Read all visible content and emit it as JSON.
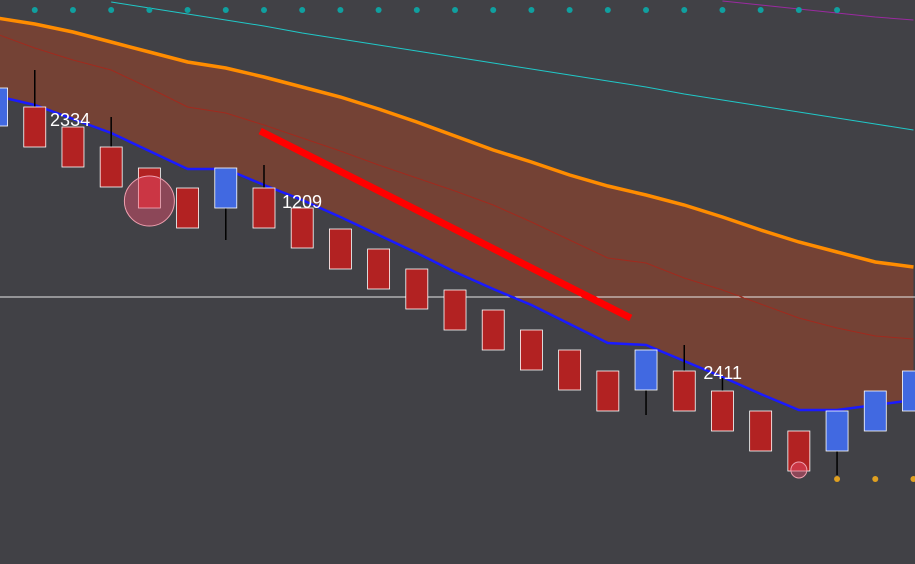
{
  "chart_data": {
    "type": "candlestick",
    "x": [
      0,
      1,
      2,
      3,
      4,
      5,
      6,
      7,
      8,
      9,
      10,
      11,
      12,
      13,
      14,
      15,
      16,
      17,
      18,
      19,
      20,
      21,
      22,
      23,
      24
    ],
    "open": [
      438,
      457,
      437,
      417,
      396,
      376,
      356,
      376,
      356,
      335,
      315,
      295,
      274,
      254,
      234,
      214,
      193,
      174,
      193,
      173,
      153,
      133,
      113,
      133,
      153
    ],
    "high": [
      476,
      494,
      437,
      447,
      396,
      376,
      396,
      399,
      356,
      335,
      315,
      295,
      274,
      254,
      234,
      214,
      193,
      214,
      219,
      186,
      153,
      133,
      153,
      173,
      193
    ],
    "low": [
      438,
      417,
      397,
      377,
      356,
      336,
      324,
      336,
      316,
      295,
      275,
      255,
      234,
      214,
      194,
      174,
      153,
      149,
      153,
      133,
      113,
      93,
      89,
      133,
      153
    ],
    "close": [
      476,
      417,
      397,
      377,
      356,
      336,
      396,
      336,
      316,
      295,
      275,
      255,
      234,
      214,
      194,
      174,
      153,
      214,
      153,
      133,
      113,
      93,
      153,
      173,
      193
    ],
    "up_color": "#4169e1",
    "down_color": "#b22222",
    "xlim": [
      0.09,
      24.04
    ],
    "ylim": [
      0,
      564
    ],
    "band_color": "#7a4333",
    "series": [
      {
        "color": "#1a1aff",
        "values": [
          468,
          459,
          445,
          431,
          413,
          395,
          395,
          379,
          364,
          347,
          329,
          311,
          292,
          275,
          259,
          240,
          221,
          219,
          203,
          187,
          170,
          154,
          154,
          159,
          164
        ]
      },
      {
        "color": "#ff8c00",
        "values": [
          546,
          540,
          532,
          522,
          512,
          502,
          496,
          487,
          477,
          467,
          455,
          442,
          428,
          414,
          402,
          389,
          378,
          369,
          359,
          347,
          334,
          322,
          312,
          302,
          297
        ]
      },
      {
        "color": "#a02a1e",
        "values": [
          530,
          516,
          504,
          494,
          476,
          457,
          451,
          439,
          426,
          413,
          399,
          386,
          373,
          359,
          342,
          324,
          306,
          301,
          286,
          274,
          260,
          246,
          236,
          228,
          225
        ]
      },
      {
        "color": "#20c8c8",
        "values": [
          null,
          null,
          null,
          562,
          556,
          550,
          544,
          538,
          531,
          525,
          519,
          513,
          507,
          501,
          495,
          489,
          483,
          477,
          470,
          464,
          458,
          452,
          446,
          440,
          434
        ]
      },
      {
        "color": "#9a2aa0",
        "values": [
          null,
          null,
          null,
          null,
          null,
          null,
          null,
          null,
          null,
          null,
          null,
          null,
          null,
          null,
          null,
          null,
          null,
          null,
          null,
          563,
          559,
          555,
          551,
          547,
          544
        ]
      }
    ],
    "hline": {
      "value": 267,
      "color": "#e8e8e8"
    },
    "trendline": {
      "x": [
        6.9,
        16.6
      ],
      "values": [
        433,
        246
      ],
      "color": "#ff0000"
    },
    "dots": [
      {
        "color": "#10a0a0",
        "x": [
          1,
          2,
          3,
          4,
          5,
          6,
          7,
          8,
          9,
          10,
          11,
          12,
          13,
          14,
          15,
          16,
          17,
          18,
          19,
          20,
          21,
          22
        ],
        "values": [
          554,
          554,
          554,
          554,
          554,
          554,
          554,
          554,
          554,
          554,
          554,
          554,
          554,
          554,
          554,
          554,
          554,
          554,
          554,
          554,
          554,
          554
        ]
      },
      {
        "color": "#e0a020",
        "x": [
          22,
          23,
          24
        ],
        "values": [
          85,
          85,
          85
        ]
      }
    ],
    "markers": {
      "color": "#e8506e",
      "x": [
        4,
        21
      ],
      "values": [
        363,
        94
      ],
      "sizes": [
        25,
        8
      ]
    },
    "annotations": [
      {
        "text": "2334",
        "x": 1.4,
        "y": 443
      },
      {
        "text": "1209",
        "x": 7.47,
        "y": 361
      },
      {
        "text": "2411",
        "x": 18.5,
        "y": 190
      }
    ]
  }
}
